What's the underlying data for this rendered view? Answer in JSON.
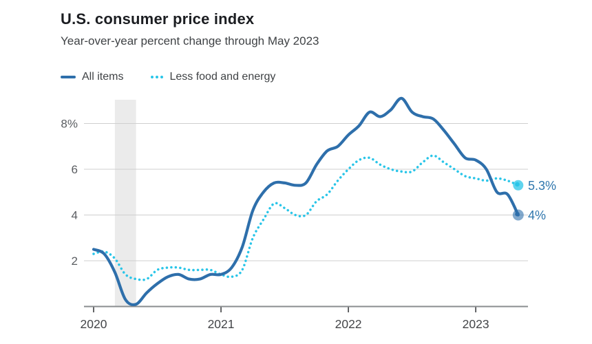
{
  "header": {
    "title": "U.S. consumer price index",
    "subtitle": "Year-over-year percent change through May 2023"
  },
  "legend": {
    "items": [
      {
        "label": "All items",
        "swatch": "solid-line",
        "color": "#2e6fab"
      },
      {
        "label": "Less food and energy",
        "swatch": "dotted-line",
        "color": "#29c5e8"
      }
    ]
  },
  "chart_data": {
    "type": "line",
    "title": "U.S. consumer price index",
    "subtitle": "Year-over-year percent change through May 2023",
    "x_unit": "month",
    "x_range": [
      "2020-01",
      "2023-05"
    ],
    "x_tick_labels": [
      "2020",
      "2021",
      "2022",
      "2023"
    ],
    "x_tick_indices": [
      0,
      12,
      24,
      36
    ],
    "y_ticks": [
      2,
      4,
      6,
      8
    ],
    "y_tick_labels": [
      "2",
      "4",
      "6",
      "8%"
    ],
    "ylim": [
      0,
      9.2
    ],
    "grid": "horizontal",
    "recession_band": {
      "start_month": "2020-03",
      "end_month": "2020-05",
      "start_index": 2,
      "end_index": 4,
      "color": "#ebebeb"
    },
    "series": [
      {
        "name": "All items",
        "style": "solid",
        "color": "#2e6fab",
        "end_label": "4%",
        "values": [
          2.5,
          2.3,
          1.5,
          0.3,
          0.1,
          0.6,
          1.0,
          1.3,
          1.4,
          1.2,
          1.2,
          1.4,
          1.4,
          1.7,
          2.6,
          4.2,
          5.0,
          5.4,
          5.4,
          5.3,
          5.4,
          6.2,
          6.8,
          7.0,
          7.5,
          7.9,
          8.5,
          8.3,
          8.6,
          9.1,
          8.5,
          8.3,
          8.2,
          7.7,
          7.1,
          6.5,
          6.4,
          6.0,
          5.0,
          4.9,
          4.0
        ]
      },
      {
        "name": "Less food and energy",
        "style": "dotted",
        "color": "#29c5e8",
        "end_label": "5.3%",
        "values": [
          2.3,
          2.4,
          2.1,
          1.4,
          1.2,
          1.2,
          1.6,
          1.7,
          1.7,
          1.6,
          1.6,
          1.6,
          1.4,
          1.3,
          1.6,
          3.0,
          3.8,
          4.5,
          4.3,
          4.0,
          4.0,
          4.6,
          4.9,
          5.5,
          6.0,
          6.4,
          6.5,
          6.2,
          6.0,
          5.9,
          5.9,
          6.3,
          6.6,
          6.3,
          6.0,
          5.7,
          5.6,
          5.5,
          5.6,
          5.5,
          5.3
        ]
      }
    ],
    "end_label_color": "#2e76ad",
    "axis_color": "#8a8c8f",
    "gridline_color": "#cfcfcf",
    "y_label_color": "#5a5d61",
    "x_label_color": "#434548"
  }
}
